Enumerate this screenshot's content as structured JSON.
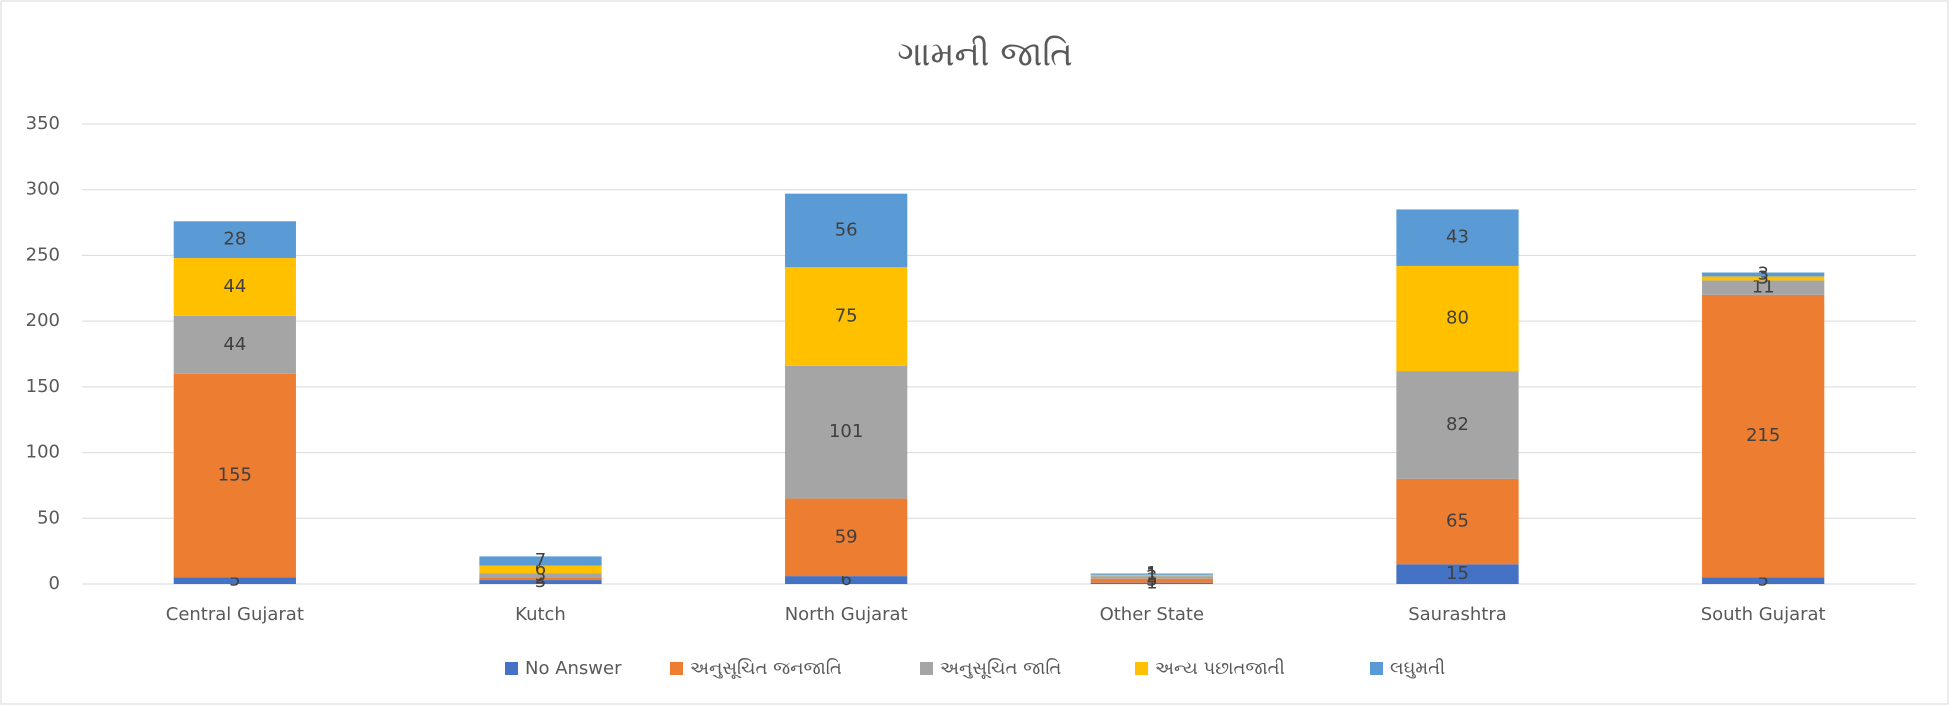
{
  "chart_data": {
    "type": "stacked_bar",
    "title": "ગામની જાતિ",
    "categories": [
      "Central Gujarat",
      "Kutch",
      "North Gujarat",
      "Other State",
      "Saurashtra",
      "South Gujarat"
    ],
    "series": [
      {
        "name": "No Answer",
        "color": "#4472c4",
        "values": [
          5,
          3,
          6,
          1,
          15,
          5
        ]
      },
      {
        "name": "અનુસૂચિત જનજાતિ",
        "color": "#ed7d31",
        "values": [
          155,
          2,
          59,
          3,
          65,
          215
        ]
      },
      {
        "name": "અનુસૂચિત જાતિ",
        "color": "#a5a5a5",
        "values": [
          44,
          3,
          101,
          2,
          82,
          11
        ]
      },
      {
        "name": "અન્ય પછાતજાતી",
        "color": "#ffc000",
        "values": [
          44,
          6,
          75,
          1,
          80,
          3
        ]
      },
      {
        "name": "લઘુમતી",
        "color": "#5b9bd5",
        "values": [
          28,
          7,
          56,
          1,
          43,
          3
        ]
      }
    ],
    "ylim": [
      0,
      350
    ],
    "yticks": [
      0,
      50,
      100,
      150,
      200,
      250,
      300,
      350
    ],
    "grid": true,
    "legend": "bottom"
  }
}
